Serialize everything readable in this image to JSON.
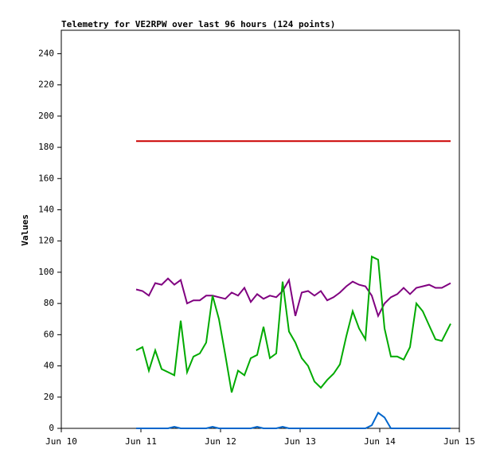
{
  "chart_data": {
    "type": "line",
    "title": "Telemetry for VE2RPW over last 96 hours (124 points)",
    "y_label": "Values",
    "x": [
      10.94,
      11.02,
      11.1,
      11.18,
      11.26,
      11.34,
      11.42,
      11.5,
      11.58,
      11.66,
      11.74,
      11.82,
      11.9,
      11.98,
      12.06,
      12.14,
      12.22,
      12.3,
      12.38,
      12.46,
      12.54,
      12.62,
      12.7,
      12.78,
      12.86,
      12.94,
      13.02,
      13.1,
      13.18,
      13.26,
      13.34,
      13.42,
      13.5,
      13.58,
      13.66,
      13.74,
      13.82,
      13.9,
      13.98,
      14.06,
      14.14,
      14.22,
      14.3,
      14.38,
      14.46,
      14.54,
      14.62,
      14.7,
      14.78,
      14.89
    ],
    "series": [
      {
        "color": "#cc0000",
        "values": [
          184,
          184,
          184,
          184,
          184,
          184,
          184,
          184,
          184,
          184,
          184,
          184,
          184,
          184,
          184,
          184,
          184,
          184,
          184,
          184,
          184,
          184,
          184,
          184,
          184,
          184,
          184,
          184,
          184,
          184,
          184,
          184,
          184,
          184,
          184,
          184,
          184,
          184,
          184,
          184,
          184,
          184,
          184,
          184,
          184,
          184,
          184,
          184,
          184,
          184
        ]
      },
      {
        "color": "#800080",
        "values": [
          89,
          88,
          85,
          93,
          92,
          96,
          92,
          95,
          80,
          82,
          82,
          85,
          85,
          84,
          83,
          87,
          85,
          90,
          81,
          86,
          83,
          85,
          84,
          88,
          95,
          72,
          87,
          88,
          85,
          88,
          82,
          84,
          87,
          91,
          94,
          92,
          91,
          85,
          72,
          80,
          84,
          86,
          90,
          86,
          90,
          91,
          92,
          90,
          90,
          93
        ]
      },
      {
        "color": "#00aa00",
        "values": [
          50,
          52,
          37,
          50,
          38,
          36,
          34,
          69,
          36,
          46,
          48,
          55,
          85,
          70,
          47,
          23,
          37,
          34,
          45,
          47,
          65,
          45,
          48,
          94,
          62,
          55,
          45,
          40,
          30,
          26,
          31,
          35,
          41,
          59,
          75,
          64,
          57,
          110,
          108,
          64,
          46,
          46,
          44,
          52,
          80,
          75,
          66,
          57,
          56,
          67
        ]
      },
      {
        "color": "#0066cc",
        "values": [
          0,
          0,
          0,
          0,
          0,
          0,
          1,
          0,
          0,
          0,
          0,
          0,
          1,
          0,
          0,
          0,
          0,
          0,
          0,
          1,
          0,
          0,
          0,
          1,
          0,
          0,
          0,
          0,
          0,
          0,
          0,
          0,
          0,
          0,
          0,
          0,
          0,
          2,
          10,
          7,
          0,
          0,
          0,
          0,
          0,
          0,
          0,
          0,
          0,
          0
        ]
      }
    ],
    "xlim": [
      10,
      15
    ],
    "xticks": [
      {
        "value": 10,
        "label": "Jun 10"
      },
      {
        "value": 11,
        "label": "Jun 11"
      },
      {
        "value": 12,
        "label": "Jun 12"
      },
      {
        "value": 13,
        "label": "Jun 13"
      },
      {
        "value": 14,
        "label": "Jun 14"
      },
      {
        "value": 15,
        "label": "Jun 15"
      }
    ],
    "ylim": [
      0,
      255
    ],
    "yticks": [
      0,
      20,
      40,
      60,
      80,
      100,
      120,
      140,
      160,
      180,
      200,
      220,
      240
    ]
  }
}
